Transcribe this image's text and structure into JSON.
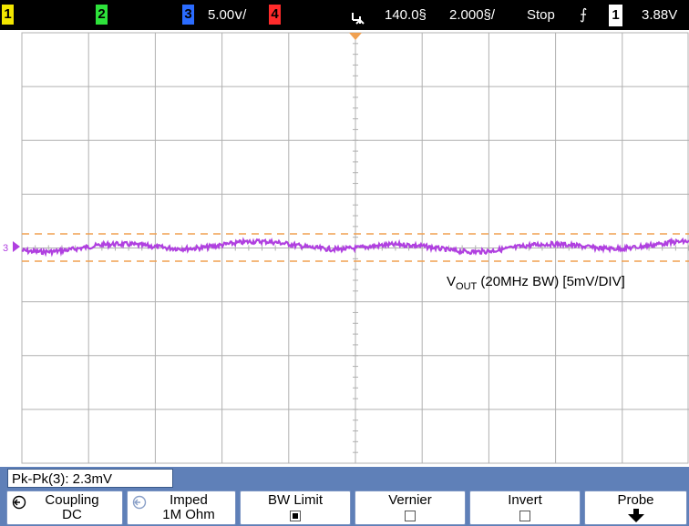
{
  "topbar": {
    "ch1": "1",
    "ch2": "2",
    "ch3": "3",
    "ch3_scale": "5.00ⅴ/",
    "ch4": "4",
    "trigger_icon": "trigger-position-icon",
    "time_delay": "140.0§",
    "time_scale": "2.000§/",
    "run_state": "Stop",
    "edge_icon": "rising-edge-icon",
    "trigger_source": "1",
    "trigger_level": "3.88V"
  },
  "colors": {
    "ch1": "#f2e600",
    "ch2": "#2ee23b",
    "ch3": "#2b6cff",
    "ch4": "#ff2b2b",
    "trace": "#b040e0",
    "cursor": "#f0a050",
    "grid": "#b0b0b0",
    "softkey_bar": "#5f80b8"
  },
  "screen": {
    "trace_label_main": "V",
    "trace_label_sub": "OUT",
    "trace_label_rest": " (20MHz BW) [5mV/DIV]",
    "channel_marker": "3"
  },
  "measurement": {
    "text": "Pk-Pk(3): 2.3mV"
  },
  "softkeys": [
    {
      "title": "Coupling",
      "value": "DC",
      "icon": "rotate-knob-icon"
    },
    {
      "title": "Imped",
      "value": "1M Ohm",
      "icon": "rotate-knob-icon"
    },
    {
      "title": "BW Limit",
      "checked": true
    },
    {
      "title": "Vernier",
      "checked": false
    },
    {
      "title": "Invert",
      "checked": false
    },
    {
      "title": "Probe",
      "icon": "arrow-down-icon"
    }
  ]
}
